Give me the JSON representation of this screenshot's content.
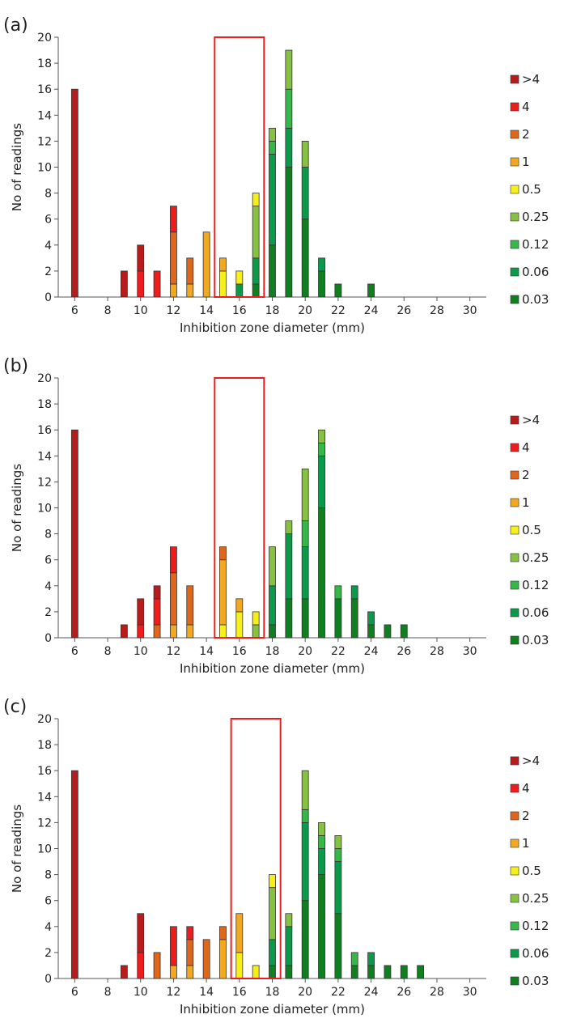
{
  "shared": {
    "x_ticks": [
      "6",
      "8",
      "10",
      "12",
      "14",
      "16",
      "18",
      "20",
      "22",
      "24",
      "26",
      "28",
      "30"
    ],
    "y_ticks": [
      "0",
      "2",
      "4",
      "6",
      "8",
      "10",
      "12",
      "14",
      "16",
      "18",
      "20"
    ],
    "xlabel": "Inhibition zone diameter (mm)",
    "ylabel": "No of readings",
    "legend": [
      {
        "label": ">4",
        "color": "#b71c1c"
      },
      {
        "label": "4",
        "color": "#ee1c1c"
      },
      {
        "label": "2",
        "color": "#e0661a"
      },
      {
        "label": "1",
        "color": "#f2a81f"
      },
      {
        "label": "0.5",
        "color": "#f7ef1a"
      },
      {
        "label": "0.25",
        "color": "#86c142"
      },
      {
        "label": "0.12",
        "color": "#35b848"
      },
      {
        "label": "0.06",
        "color": "#0b9a4a"
      },
      {
        "label": "0.03",
        "color": "#0f7f1f"
      }
    ]
  },
  "chart_data": [
    {
      "type": "bar",
      "panel_label": "(a)",
      "xlabel": "Inhibition zone diameter (mm)",
      "ylabel": "No of readings",
      "xlim": [
        5,
        31
      ],
      "ylim": [
        0,
        20
      ],
      "stacked": true,
      "series_order": [
        ">4",
        "4",
        "2",
        "1",
        "0.5",
        "0.25",
        "0.12",
        "0.06",
        "0.03"
      ],
      "x": [
        6,
        9,
        10,
        11,
        12,
        13,
        14,
        15,
        16,
        17,
        18,
        19,
        20,
        21,
        22,
        24
      ],
      "series": [
        {
          "name": "0.03",
          "values": [
            0,
            0,
            0,
            0,
            0,
            0,
            0,
            0,
            0,
            1,
            4,
            10,
            6,
            2,
            1,
            1
          ]
        },
        {
          "name": "0.06",
          "values": [
            0,
            0,
            0,
            0,
            0,
            0,
            0,
            0,
            1,
            2,
            7,
            3,
            4,
            1,
            0,
            0
          ]
        },
        {
          "name": "0.12",
          "values": [
            0,
            0,
            0,
            0,
            0,
            0,
            0,
            0,
            0,
            0,
            1,
            3,
            0,
            0,
            0,
            0
          ]
        },
        {
          "name": "0.25",
          "values": [
            0,
            0,
            0,
            0,
            0,
            0,
            0,
            0,
            0,
            4,
            1,
            3,
            2,
            0,
            0,
            0
          ]
        },
        {
          "name": "0.5",
          "values": [
            0,
            0,
            0,
            0,
            0,
            0,
            0,
            2,
            1,
            1,
            0,
            0,
            0,
            0,
            0,
            0
          ]
        },
        {
          "name": "1",
          "values": [
            0,
            0,
            0,
            0,
            1,
            1,
            5,
            1,
            0,
            0,
            0,
            0,
            0,
            0,
            0,
            0
          ]
        },
        {
          "name": "2",
          "values": [
            0,
            0,
            0,
            0,
            4,
            2,
            0,
            0,
            0,
            0,
            0,
            0,
            0,
            0,
            0,
            0
          ]
        },
        {
          "name": "4",
          "values": [
            0,
            0,
            2,
            2,
            2,
            0,
            0,
            0,
            0,
            0,
            0,
            0,
            0,
            0,
            0,
            0
          ]
        },
        {
          "name": ">4",
          "values": [
            16,
            2,
            2,
            0,
            0,
            0,
            0,
            0,
            0,
            0,
            0,
            0,
            0,
            0,
            0,
            0
          ]
        }
      ],
      "highlight_box": {
        "x_from": 14.5,
        "x_to": 17.5,
        "y_to": 20,
        "color": "#ee1c1c"
      }
    },
    {
      "type": "bar",
      "panel_label": "(b)",
      "xlabel": "Inhibition zone diameter (mm)",
      "ylabel": "No of readings",
      "xlim": [
        5,
        31
      ],
      "ylim": [
        0,
        20
      ],
      "stacked": true,
      "series_order": [
        ">4",
        "4",
        "2",
        "1",
        "0.5",
        "0.25",
        "0.12",
        "0.06",
        "0.03"
      ],
      "x": [
        6,
        9,
        10,
        11,
        12,
        13,
        15,
        16,
        17,
        18,
        19,
        20,
        21,
        22,
        23,
        24,
        25,
        26
      ],
      "series": [
        {
          "name": "0.03",
          "values": [
            0,
            0,
            0,
            0,
            0,
            0,
            0,
            0,
            0,
            1,
            3,
            3,
            10,
            3,
            3,
            1,
            1,
            1
          ]
        },
        {
          "name": "0.06",
          "values": [
            0,
            0,
            0,
            0,
            0,
            0,
            0,
            0,
            0,
            3,
            5,
            4,
            4,
            0,
            1,
            1,
            0,
            0
          ]
        },
        {
          "name": "0.12",
          "values": [
            0,
            0,
            0,
            0,
            0,
            0,
            0,
            0,
            0,
            0,
            0,
            2,
            1,
            1,
            0,
            0,
            0,
            0
          ]
        },
        {
          "name": "0.25",
          "values": [
            0,
            0,
            0,
            0,
            0,
            0,
            0,
            0,
            1,
            3,
            1,
            4,
            1,
            0,
            0,
            0,
            0,
            0
          ]
        },
        {
          "name": "0.5",
          "values": [
            0,
            0,
            0,
            0,
            0,
            0,
            1,
            2,
            1,
            0,
            0,
            0,
            0,
            0,
            0,
            0,
            0,
            0
          ]
        },
        {
          "name": "1",
          "values": [
            0,
            0,
            0,
            0,
            1,
            1,
            5,
            1,
            0,
            0,
            0,
            0,
            0,
            0,
            0,
            0,
            0,
            0
          ]
        },
        {
          "name": "2",
          "values": [
            0,
            0,
            0,
            1,
            4,
            3,
            1,
            0,
            0,
            0,
            0,
            0,
            0,
            0,
            0,
            0,
            0,
            0
          ]
        },
        {
          "name": "4",
          "values": [
            0,
            0,
            1,
            2,
            2,
            0,
            0,
            0,
            0,
            0,
            0,
            0,
            0,
            0,
            0,
            0,
            0,
            0
          ]
        },
        {
          "name": ">4",
          "values": [
            16,
            1,
            2,
            1,
            0,
            0,
            0,
            0,
            0,
            0,
            0,
            0,
            0,
            0,
            0,
            0,
            0,
            0
          ]
        }
      ],
      "highlight_box": {
        "x_from": 14.5,
        "x_to": 17.5,
        "y_to": 20,
        "color": "#ee1c1c"
      }
    },
    {
      "type": "bar",
      "panel_label": "(c)",
      "xlabel": "Inhibition zone diameter (mm)",
      "ylabel": "No of readings",
      "xlim": [
        5,
        31
      ],
      "ylim": [
        0,
        20
      ],
      "stacked": true,
      "series_order": [
        ">4",
        "4",
        "2",
        "1",
        "0.5",
        "0.25",
        "0.12",
        "0.06",
        "0.03"
      ],
      "x": [
        6,
        9,
        10,
        11,
        12,
        13,
        14,
        15,
        16,
        17,
        18,
        19,
        20,
        21,
        22,
        23,
        24,
        25,
        26,
        27
      ],
      "series": [
        {
          "name": "0.03",
          "values": [
            0,
            0,
            0,
            0,
            0,
            0,
            0,
            0,
            0,
            0,
            1,
            1,
            6,
            8,
            5,
            1,
            1,
            1,
            1,
            1
          ]
        },
        {
          "name": "0.06",
          "values": [
            0,
            0,
            0,
            0,
            0,
            0,
            0,
            0,
            0,
            0,
            2,
            3,
            6,
            2,
            4,
            0,
            1,
            0,
            0,
            0
          ]
        },
        {
          "name": "0.12",
          "values": [
            0,
            0,
            0,
            0,
            0,
            0,
            0,
            0,
            0,
            0,
            0,
            0,
            1,
            1,
            1,
            1,
            0,
            0,
            0,
            0
          ]
        },
        {
          "name": "0.25",
          "values": [
            0,
            0,
            0,
            0,
            0,
            0,
            0,
            0,
            0,
            0,
            4,
            1,
            3,
            1,
            1,
            0,
            0,
            0,
            0,
            0
          ]
        },
        {
          "name": "0.5",
          "values": [
            0,
            0,
            0,
            0,
            0,
            0,
            0,
            0,
            2,
            1,
            1,
            0,
            0,
            0,
            0,
            0,
            0,
            0,
            0,
            0
          ]
        },
        {
          "name": "1",
          "values": [
            0,
            0,
            0,
            0,
            1,
            1,
            0,
            3,
            3,
            0,
            0,
            0,
            0,
            0,
            0,
            0,
            0,
            0,
            0,
            0
          ]
        },
        {
          "name": "2",
          "values": [
            0,
            0,
            0,
            2,
            0,
            2,
            3,
            1,
            0,
            0,
            0,
            0,
            0,
            0,
            0,
            0,
            0,
            0,
            0,
            0
          ]
        },
        {
          "name": "4",
          "values": [
            0,
            0,
            2,
            0,
            3,
            1,
            0,
            0,
            0,
            0,
            0,
            0,
            0,
            0,
            0,
            0,
            0,
            0,
            0,
            0
          ]
        },
        {
          "name": ">4",
          "values": [
            16,
            1,
            3,
            0,
            0,
            0,
            0,
            0,
            0,
            0,
            0,
            0,
            0,
            0,
            0,
            0,
            0,
            0,
            0,
            0
          ]
        }
      ],
      "highlight_box": {
        "x_from": 15.5,
        "x_to": 18.5,
        "y_to": 20,
        "color": "#ee1c1c"
      }
    }
  ]
}
